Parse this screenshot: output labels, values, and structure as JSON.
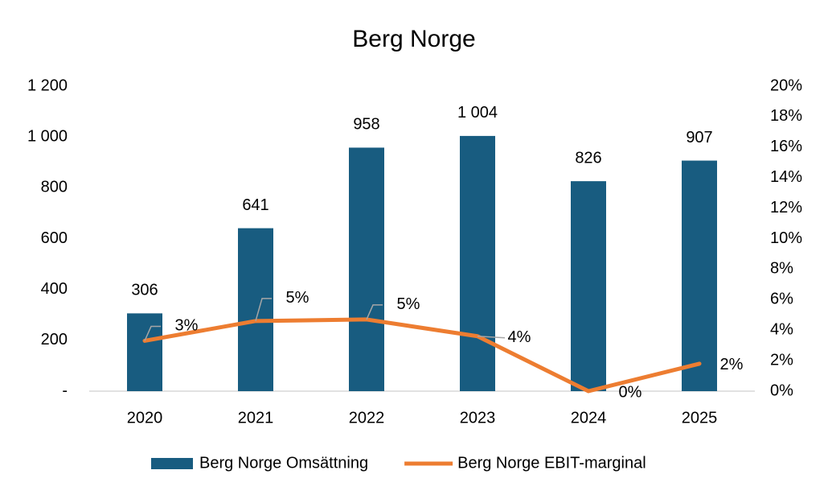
{
  "chart_data": {
    "type": "bar",
    "title": "Berg Norge",
    "categories": [
      "2020",
      "2021",
      "2022",
      "2023",
      "2024",
      "2025"
    ],
    "series": [
      {
        "name": "Berg Norge Omsättning",
        "type": "bar",
        "color": "#185c80",
        "values": [
          306,
          641,
          958,
          1004,
          826,
          907
        ],
        "value_labels": [
          "306",
          "641",
          "958",
          "1 004",
          "826",
          "907"
        ]
      },
      {
        "name": "Berg Norge EBIT-marginal",
        "type": "line",
        "axis": "y2",
        "color": "#ed7d31",
        "values": [
          3.3,
          4.6,
          4.7,
          3.6,
          0,
          1.8
        ],
        "value_labels": [
          "3%",
          "5%",
          "5%",
          "4%",
          "0%",
          "2%"
        ]
      }
    ],
    "ylim": [
      0,
      1200
    ],
    "yticks": [
      {
        "value": 0,
        "label": "-"
      },
      200,
      400,
      600,
      800,
      {
        "value": 1000,
        "label": "1 000"
      },
      {
        "value": 1200,
        "label": "1 200"
      }
    ],
    "y2lim": [
      0,
      20
    ],
    "y2ticks": [
      {
        "value": 0,
        "label": "0%"
      },
      {
        "value": 2,
        "label": "2%"
      },
      {
        "value": 4,
        "label": "4%"
      },
      {
        "value": 6,
        "label": "6%"
      },
      {
        "value": 8,
        "label": "8%"
      },
      {
        "value": 10,
        "label": "10%"
      },
      {
        "value": 12,
        "label": "12%"
      },
      {
        "value": 14,
        "label": "14%"
      },
      {
        "value": 16,
        "label": "16%"
      },
      {
        "value": 18,
        "label": "18%"
      },
      {
        "value": 20,
        "label": "20%"
      }
    ],
    "grid": false,
    "legend": "bottom"
  }
}
